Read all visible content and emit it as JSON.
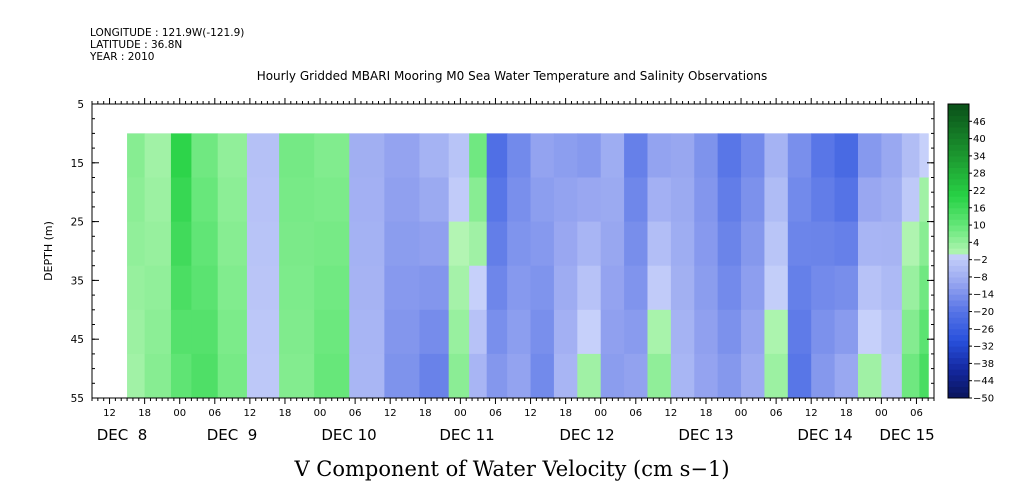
{
  "header": {
    "longitude": "LONGITUDE : 121.9W(-121.9)",
    "latitude": "LATITUDE : 36.8N",
    "year": "YEAR : 2010"
  },
  "chart_data": {
    "type": "heatmap",
    "title": "Hourly Gridded MBARI Mooring M0 Sea Water Temperature and Salinity Observations",
    "xlabel": "V Component of Water Velocity (cm s−1)",
    "ylabel": "DEPTH (m)",
    "x_units": "hours since DEC 8 00:00",
    "xlim": [
      -15,
      129
    ],
    "data_x_range": [
      -9,
      128
    ],
    "ylim": [
      5,
      55
    ],
    "y_inverted": true,
    "data_y_range": [
      10,
      55
    ],
    "y_ticks": [
      5,
      15,
      25,
      35,
      45,
      55
    ],
    "x_hour_ticks": [
      {
        "t": -12,
        "label": "12"
      },
      {
        "t": -6,
        "label": "18"
      },
      {
        "t": 0,
        "label": "00"
      },
      {
        "t": 6,
        "label": "06"
      },
      {
        "t": 12,
        "label": "12"
      },
      {
        "t": 18,
        "label": "18"
      },
      {
        "t": 24,
        "label": "00"
      },
      {
        "t": 30,
        "label": "06"
      },
      {
        "t": 36,
        "label": "12"
      },
      {
        "t": 42,
        "label": "18"
      },
      {
        "t": 48,
        "label": "00"
      },
      {
        "t": 54,
        "label": "06"
      },
      {
        "t": 60,
        "label": "12"
      },
      {
        "t": 66,
        "label": "18"
      },
      {
        "t": 72,
        "label": "00"
      },
      {
        "t": 78,
        "label": "06"
      },
      {
        "t": 84,
        "label": "12"
      },
      {
        "t": 90,
        "label": "18"
      },
      {
        "t": 96,
        "label": "00"
      },
      {
        "t": 102,
        "label": "06"
      },
      {
        "t": 108,
        "label": "12"
      },
      {
        "t": 114,
        "label": "18"
      },
      {
        "t": 120,
        "label": "00"
      },
      {
        "t": 126,
        "label": "06"
      }
    ],
    "day_labels": [
      {
        "t": 0,
        "label": "DEC  8"
      },
      {
        "t": 24,
        "label": "DEC  9"
      },
      {
        "t": 48,
        "label": "DEC 10"
      },
      {
        "t": 72,
        "label": "DEC 11"
      },
      {
        "t": 96,
        "label": "DEC 12"
      },
      {
        "t": 120,
        "label": "DEC 13"
      },
      {
        "t": 144,
        "label": "DEC 14"
      },
      {
        "t": 160,
        "label": "DEC 15"
      }
    ],
    "colorbar": {
      "min": -50,
      "max": 52,
      "step": 2,
      "labels": [
        46,
        40,
        34,
        28,
        22,
        16,
        10,
        4,
        -2,
        -8,
        -14,
        -20,
        -26,
        -32,
        -38,
        -44,
        -50
      ]
    },
    "profile_columns": [
      {
        "t": -9,
        "v_top": 6,
        "v_bottom": 2
      },
      {
        "t": -3,
        "v_top": 2,
        "v_bottom": 6
      },
      {
        "t": 0,
        "v_top": 20,
        "v_bottom": 10
      },
      {
        "t": 4,
        "v_top": 8,
        "v_bottom": 14
      },
      {
        "t": 9,
        "v_top": 4,
        "v_bottom": 8
      },
      {
        "t": 14,
        "v_top": -4,
        "v_bottom": -2
      },
      {
        "t": 20,
        "v_top": 8,
        "v_bottom": 6
      },
      {
        "t": 26,
        "v_top": 6,
        "v_bottom": 10
      },
      {
        "t": 32,
        "v_top": -8,
        "v_bottom": -6
      },
      {
        "t": 38,
        "v_top": -10,
        "v_bottom": -14
      },
      {
        "t": 44,
        "v_top": -6,
        "v_bottom": -18
      },
      {
        "t": 48,
        "v_top": -4,
        "v_bottom": 6
      },
      {
        "t": 51,
        "v_top": 10,
        "v_bottom": -8
      },
      {
        "t": 54,
        "v_top": -22,
        "v_bottom": -12
      },
      {
        "t": 58,
        "v_top": -16,
        "v_bottom": -10
      },
      {
        "t": 62,
        "v_top": -10,
        "v_bottom": -16
      },
      {
        "t": 66,
        "v_top": -12,
        "v_bottom": -6
      },
      {
        "t": 70,
        "v_top": -14,
        "v_bottom": 4
      },
      {
        "t": 74,
        "v_top": -8,
        "v_bottom": -12
      },
      {
        "t": 78,
        "v_top": -18,
        "v_bottom": -10
      },
      {
        "t": 82,
        "v_top": -12,
        "v_bottom": 6
      },
      {
        "t": 86,
        "v_top": -10,
        "v_bottom": -6
      },
      {
        "t": 90,
        "v_top": -14,
        "v_bottom": -10
      },
      {
        "t": 94,
        "v_top": -20,
        "v_bottom": -12
      },
      {
        "t": 98,
        "v_top": -16,
        "v_bottom": -8
      },
      {
        "t": 102,
        "v_top": -8,
        "v_bottom": 4
      },
      {
        "t": 106,
        "v_top": -14,
        "v_bottom": -20
      },
      {
        "t": 110,
        "v_top": -20,
        "v_bottom": -12
      },
      {
        "t": 114,
        "v_top": -24,
        "v_bottom": -8
      },
      {
        "t": 118,
        "v_top": -14,
        "v_bottom": 4
      },
      {
        "t": 122,
        "v_top": -10,
        "v_bottom": -2
      },
      {
        "t": 125,
        "v_top": -6,
        "v_bottom": 10
      },
      {
        "t": 128,
        "v_top": -2,
        "v_bottom": 16
      }
    ]
  }
}
